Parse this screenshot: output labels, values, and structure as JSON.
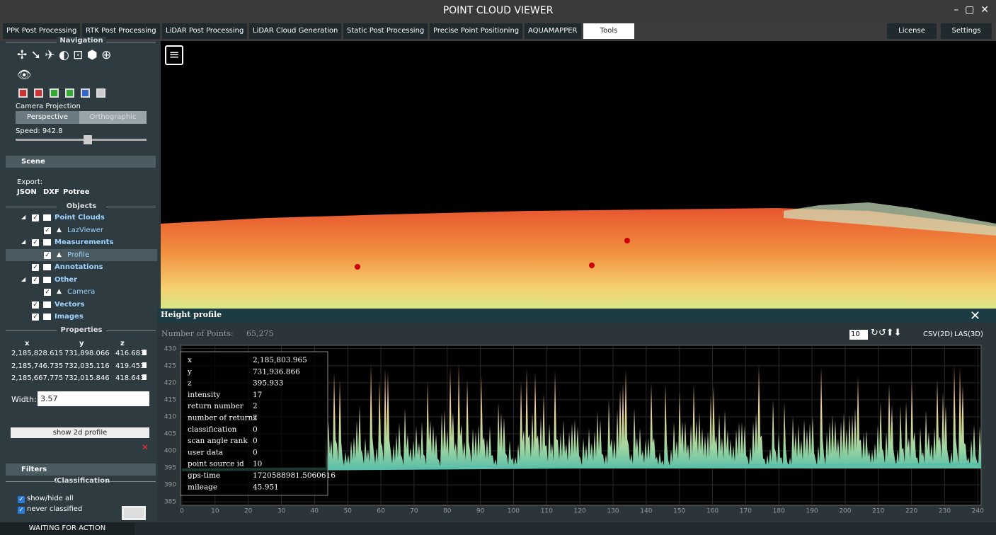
{
  "title": "POINT CLOUD VIEWER",
  "tabs": [
    "PPK Post Processing",
    "RTK Post Processing",
    "LiDAR Post Processing",
    "LiDAR Cloud Generation",
    "Static Post Processing",
    "Precise Point Positioning",
    "AQUAMAPPER",
    "Tools"
  ],
  "active_tab": 7,
  "right_tabs": [
    "License",
    "Settings"
  ],
  "sidebar": {
    "navigation": "Navigation",
    "camera_projection": "Camera Projection",
    "projections": [
      "Perspective",
      "Orthographic"
    ],
    "speed": "Speed: 942.8",
    "scene": "Scene",
    "export": "Export:",
    "formats": [
      "JSON",
      "DXF",
      "Potree"
    ],
    "objects": "Objects",
    "tree": [
      {
        "label": "Point Clouds",
        "children": [
          "LazViewer"
        ]
      },
      {
        "label": "Measurements",
        "children": [
          "Profile"
        ]
      },
      {
        "label": "Annotations",
        "children": []
      },
      {
        "label": "Other",
        "children": [
          "Camera"
        ]
      },
      {
        "label": "Vectors",
        "children": []
      },
      {
        "label": "Images",
        "children": []
      }
    ],
    "properties": "Properties",
    "columns": [
      "x",
      "y",
      "z"
    ],
    "rows": [
      [
        "2,185,828.615",
        "731,898.066",
        "416.683"
      ],
      [
        "2,185,746.735",
        "732,035.116",
        "419.453"
      ],
      [
        "2,185,667.775",
        "732,015.846",
        "418.643"
      ]
    ],
    "width_label": "Width:",
    "width_value": "3.57",
    "show_profile": "show 2d profile",
    "filters": "Filters",
    "classification": "Classification",
    "checks": [
      "show/hide all",
      "never classified"
    ]
  },
  "status": "WAITING FOR ACTION",
  "profile": {
    "title": "Height profile",
    "points_label": "Number of Points:",
    "points": "65,275",
    "count": "10",
    "exports": [
      "CSV(2D)",
      "LAS(3D)"
    ],
    "xlim": [
      0,
      241
    ],
    "ylim": [
      384,
      431
    ],
    "xticks": [
      0,
      10,
      20,
      30,
      40,
      50,
      60,
      70,
      80,
      90,
      100,
      110,
      120,
      130,
      140,
      150,
      160,
      170,
      180,
      190,
      200,
      210,
      220,
      230,
      240
    ],
    "yticks": [
      385,
      390,
      395,
      400,
      405,
      410,
      415,
      420,
      425,
      430
    ],
    "tooltip": [
      [
        "x",
        "2,185,803.965"
      ],
      [
        "y",
        "731,936.866"
      ],
      [
        "z",
        "395.933"
      ],
      [
        "intensity",
        "17"
      ],
      [
        "return number",
        "2"
      ],
      [
        "number of returns",
        "2"
      ],
      [
        "classification",
        "0"
      ],
      [
        "scan angle rank",
        "0"
      ],
      [
        "user data",
        "0"
      ],
      [
        "point source id",
        "10"
      ],
      [
        "gps-time",
        "1720588981.5060616"
      ],
      [
        "mileage",
        "45.951"
      ]
    ]
  }
}
